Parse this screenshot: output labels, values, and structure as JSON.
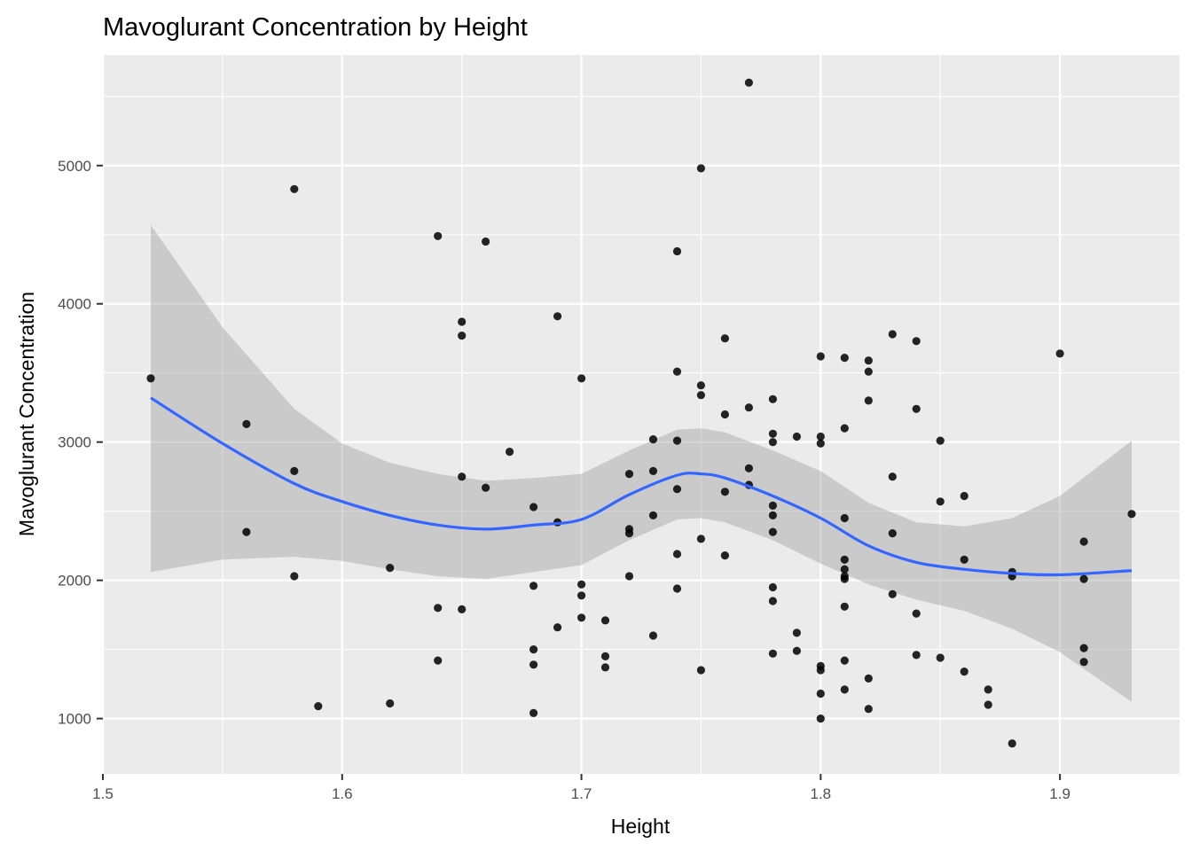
{
  "chart_data": {
    "type": "scatter",
    "title": "Mavoglurant Concentration by Height",
    "xlabel": "Height",
    "ylabel": "Mavoglurant Concentration",
    "xlim": [
      1.5,
      1.95
    ],
    "ylim": [
      600,
      5800
    ],
    "x_ticks": [
      1.5,
      1.6,
      1.7,
      1.8,
      1.9
    ],
    "x_tick_labels": [
      "1.5",
      "1.6",
      "1.7",
      "1.8",
      "1.9"
    ],
    "y_ticks": [
      1000,
      2000,
      3000,
      4000,
      5000
    ],
    "y_tick_labels": [
      "1000",
      "2000",
      "3000",
      "4000",
      "5000"
    ],
    "grid": true,
    "colors": {
      "panel_background": "#ebebeb",
      "grid": "#ffffff",
      "points": "#000000",
      "smooth_line": "#3366ff",
      "confidence_band": "#999999"
    },
    "points": [
      {
        "x": 1.52,
        "y": 3460
      },
      {
        "x": 1.56,
        "y": 3130
      },
      {
        "x": 1.56,
        "y": 2350
      },
      {
        "x": 1.58,
        "y": 4830
      },
      {
        "x": 1.58,
        "y": 2790
      },
      {
        "x": 1.58,
        "y": 2030
      },
      {
        "x": 1.59,
        "y": 1090
      },
      {
        "x": 1.62,
        "y": 2090
      },
      {
        "x": 1.62,
        "y": 1110
      },
      {
        "x": 1.64,
        "y": 4490
      },
      {
        "x": 1.64,
        "y": 1800
      },
      {
        "x": 1.64,
        "y": 1420
      },
      {
        "x": 1.65,
        "y": 3870
      },
      {
        "x": 1.65,
        "y": 3770
      },
      {
        "x": 1.65,
        "y": 2750
      },
      {
        "x": 1.65,
        "y": 1790
      },
      {
        "x": 1.66,
        "y": 4450
      },
      {
        "x": 1.66,
        "y": 2670
      },
      {
        "x": 1.67,
        "y": 2930
      },
      {
        "x": 1.68,
        "y": 2530
      },
      {
        "x": 1.68,
        "y": 1960
      },
      {
        "x": 1.68,
        "y": 1500
      },
      {
        "x": 1.68,
        "y": 1390
      },
      {
        "x": 1.68,
        "y": 1040
      },
      {
        "x": 1.69,
        "y": 3910
      },
      {
        "x": 1.69,
        "y": 2420
      },
      {
        "x": 1.69,
        "y": 1660
      },
      {
        "x": 1.7,
        "y": 3460
      },
      {
        "x": 1.7,
        "y": 1970
      },
      {
        "x": 1.7,
        "y": 1890
      },
      {
        "x": 1.7,
        "y": 1730
      },
      {
        "x": 1.71,
        "y": 1710
      },
      {
        "x": 1.71,
        "y": 1450
      },
      {
        "x": 1.71,
        "y": 1370
      },
      {
        "x": 1.72,
        "y": 2770
      },
      {
        "x": 1.72,
        "y": 2370
      },
      {
        "x": 1.72,
        "y": 2340
      },
      {
        "x": 1.72,
        "y": 2030
      },
      {
        "x": 1.73,
        "y": 3020
      },
      {
        "x": 1.73,
        "y": 2790
      },
      {
        "x": 1.73,
        "y": 2470
      },
      {
        "x": 1.73,
        "y": 1600
      },
      {
        "x": 1.74,
        "y": 4380
      },
      {
        "x": 1.74,
        "y": 3510
      },
      {
        "x": 1.74,
        "y": 3010
      },
      {
        "x": 1.74,
        "y": 2660
      },
      {
        "x": 1.74,
        "y": 2190
      },
      {
        "x": 1.74,
        "y": 1940
      },
      {
        "x": 1.75,
        "y": 4980
      },
      {
        "x": 1.75,
        "y": 3410
      },
      {
        "x": 1.75,
        "y": 3340
      },
      {
        "x": 1.75,
        "y": 2300
      },
      {
        "x": 1.75,
        "y": 1350
      },
      {
        "x": 1.76,
        "y": 3750
      },
      {
        "x": 1.76,
        "y": 3200
      },
      {
        "x": 1.76,
        "y": 2640
      },
      {
        "x": 1.76,
        "y": 2180
      },
      {
        "x": 1.77,
        "y": 5600
      },
      {
        "x": 1.77,
        "y": 3250
      },
      {
        "x": 1.77,
        "y": 2810
      },
      {
        "x": 1.77,
        "y": 2690
      },
      {
        "x": 1.78,
        "y": 3310
      },
      {
        "x": 1.78,
        "y": 3060
      },
      {
        "x": 1.78,
        "y": 3000
      },
      {
        "x": 1.78,
        "y": 2540
      },
      {
        "x": 1.78,
        "y": 2470
      },
      {
        "x": 1.78,
        "y": 2350
      },
      {
        "x": 1.78,
        "y": 1950
      },
      {
        "x": 1.78,
        "y": 1850
      },
      {
        "x": 1.78,
        "y": 1470
      },
      {
        "x": 1.79,
        "y": 3040
      },
      {
        "x": 1.79,
        "y": 1620
      },
      {
        "x": 1.79,
        "y": 1490
      },
      {
        "x": 1.8,
        "y": 3620
      },
      {
        "x": 1.8,
        "y": 3040
      },
      {
        "x": 1.8,
        "y": 2990
      },
      {
        "x": 1.8,
        "y": 1380
      },
      {
        "x": 1.8,
        "y": 1350
      },
      {
        "x": 1.8,
        "y": 1180
      },
      {
        "x": 1.8,
        "y": 1000
      },
      {
        "x": 1.81,
        "y": 3610
      },
      {
        "x": 1.81,
        "y": 3100
      },
      {
        "x": 1.81,
        "y": 2450
      },
      {
        "x": 1.81,
        "y": 2150
      },
      {
        "x": 1.81,
        "y": 2080
      },
      {
        "x": 1.81,
        "y": 2030
      },
      {
        "x": 1.81,
        "y": 2010
      },
      {
        "x": 1.81,
        "y": 1810
      },
      {
        "x": 1.81,
        "y": 1420
      },
      {
        "x": 1.81,
        "y": 1210
      },
      {
        "x": 1.82,
        "y": 3590
      },
      {
        "x": 1.82,
        "y": 3510
      },
      {
        "x": 1.82,
        "y": 3300
      },
      {
        "x": 1.82,
        "y": 1290
      },
      {
        "x": 1.82,
        "y": 1070
      },
      {
        "x": 1.83,
        "y": 3780
      },
      {
        "x": 1.83,
        "y": 2750
      },
      {
        "x": 1.83,
        "y": 2340
      },
      {
        "x": 1.83,
        "y": 1900
      },
      {
        "x": 1.84,
        "y": 3730
      },
      {
        "x": 1.84,
        "y": 3240
      },
      {
        "x": 1.84,
        "y": 1760
      },
      {
        "x": 1.84,
        "y": 1460
      },
      {
        "x": 1.85,
        "y": 3010
      },
      {
        "x": 1.85,
        "y": 2570
      },
      {
        "x": 1.85,
        "y": 1440
      },
      {
        "x": 1.86,
        "y": 2610
      },
      {
        "x": 1.86,
        "y": 2150
      },
      {
        "x": 1.86,
        "y": 1340
      },
      {
        "x": 1.87,
        "y": 1210
      },
      {
        "x": 1.87,
        "y": 1100
      },
      {
        "x": 1.88,
        "y": 2060
      },
      {
        "x": 1.88,
        "y": 2030
      },
      {
        "x": 1.88,
        "y": 820
      },
      {
        "x": 1.9,
        "y": 3640
      },
      {
        "x": 1.91,
        "y": 2280
      },
      {
        "x": 1.91,
        "y": 2010
      },
      {
        "x": 1.91,
        "y": 1510
      },
      {
        "x": 1.91,
        "y": 1410
      },
      {
        "x": 1.93,
        "y": 2480
      }
    ],
    "smooth_fit": {
      "method": "loess",
      "x": [
        1.52,
        1.55,
        1.58,
        1.6,
        1.62,
        1.64,
        1.66,
        1.68,
        1.7,
        1.72,
        1.74,
        1.75,
        1.76,
        1.78,
        1.8,
        1.82,
        1.84,
        1.86,
        1.88,
        1.9,
        1.93
      ],
      "y": [
        3320,
        2990,
        2700,
        2570,
        2470,
        2400,
        2370,
        2400,
        2440,
        2620,
        2760,
        2770,
        2740,
        2610,
        2450,
        2250,
        2130,
        2080,
        2050,
        2040,
        2070
      ],
      "lower": [
        2060,
        2150,
        2170,
        2140,
        2080,
        2030,
        2010,
        2060,
        2110,
        2290,
        2440,
        2450,
        2420,
        2290,
        2120,
        1970,
        1860,
        1780,
        1650,
        1480,
        1120
      ],
      "upper": [
        4570,
        3830,
        3240,
        2990,
        2850,
        2770,
        2720,
        2740,
        2770,
        2940,
        3090,
        3100,
        3070,
        2940,
        2790,
        2560,
        2420,
        2390,
        2450,
        2610,
        3010
      ]
    }
  }
}
